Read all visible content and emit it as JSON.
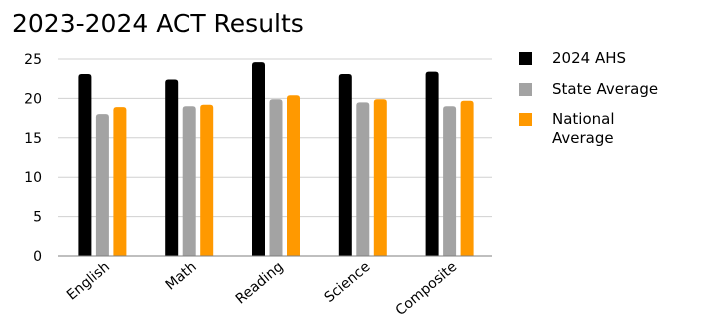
{
  "chart_data": {
    "type": "bar",
    "title": "2023-2024 ACT Results",
    "xlabel": "",
    "ylabel": "",
    "categories": [
      "English",
      "Math",
      "Reading",
      "Science",
      "Composite"
    ],
    "series": [
      {
        "name": "2024 AHS",
        "values": [
          23.1,
          22.4,
          24.6,
          23.1,
          23.4
        ],
        "color": "#000000"
      },
      {
        "name": "State Average",
        "values": [
          18.0,
          19.0,
          19.9,
          19.5,
          19.0
        ],
        "color": "#a3a3a3"
      },
      {
        "name": "National Average",
        "values": [
          18.9,
          19.2,
          20.4,
          19.9,
          19.7
        ],
        "color": "#ff9900"
      }
    ],
    "ylim": [
      0,
      25
    ],
    "yticks": [
      0,
      5,
      10,
      15,
      20,
      25
    ],
    "grid": true,
    "legend_position": "right"
  }
}
